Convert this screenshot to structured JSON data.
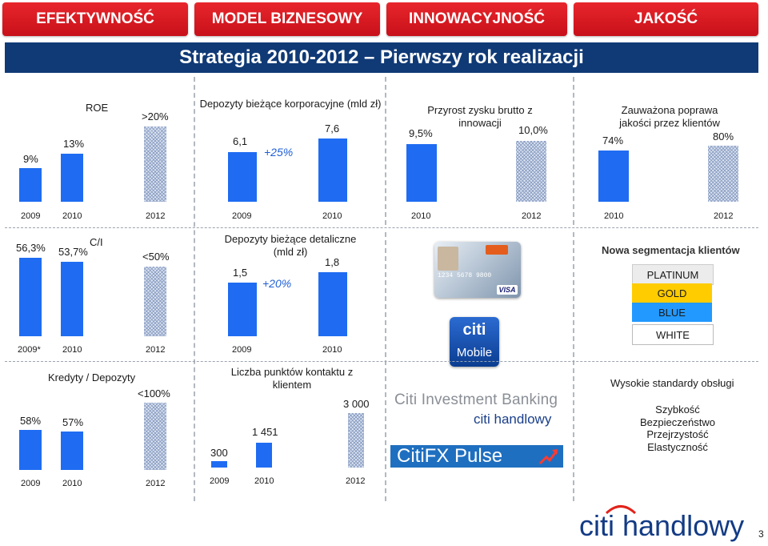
{
  "tabs": [
    "EFEKTYWNOŚĆ",
    "MODEL BIZNESOWY",
    "INNOWACYJNOŚĆ",
    "JAKOŚĆ"
  ],
  "banner": "Strategia 2010-2012 – Pierwszy rok realizacji",
  "charts": {
    "roe": {
      "title": "ROE",
      "values": [
        "9%",
        "13%",
        ">20%"
      ],
      "years": [
        "2009",
        "2010",
        "2012"
      ]
    },
    "corp_deposits": {
      "title": "Depozyty bieżące korporacyjne (mld zł)",
      "values": [
        "6,1",
        "7,6"
      ],
      "growth": "+25%",
      "years": [
        "2009",
        "2010"
      ]
    },
    "innovation_profit": {
      "title": "Przyrost zysku brutto z innowacji",
      "values": [
        "9,5%",
        "10,0%"
      ],
      "years": [
        "2010",
        "2012"
      ]
    },
    "quality": {
      "title": "Zauważona poprawa jakości przez klientów",
      "values": [
        "74%",
        "80%"
      ],
      "years": [
        "2010",
        "2012"
      ]
    },
    "ci": {
      "title": "C/I",
      "values": [
        "56,3%",
        "53,7%",
        "<50%"
      ],
      "years": [
        "2009*",
        "2010",
        "2012"
      ]
    },
    "retail_deposits": {
      "title": "Depozyty bieżące detaliczne (mld zł)",
      "values": [
        "1,5",
        "1,8"
      ],
      "growth": "+20%",
      "years": [
        "2009",
        "2010"
      ]
    },
    "loans_deposits": {
      "title": "Kredyty / Depozyty",
      "values": [
        "58%",
        "57%",
        "<100%"
      ],
      "years": [
        "2009",
        "2010",
        "2012"
      ]
    },
    "contact_points": {
      "title": "Liczba punktów kontaktu z klientem",
      "values": [
        "300",
        "1 451",
        "3 000"
      ],
      "years": [
        "2009",
        "2010",
        "2012"
      ]
    }
  },
  "segmentation": {
    "title": "Nowa segmentacja klientów",
    "levels": [
      "PLATINUM",
      "GOLD",
      "BLUE",
      "WHITE"
    ]
  },
  "service": {
    "title": "Wysokie standardy obsługi",
    "items": [
      "Szybkość",
      "Bezpieczeństwo",
      "Przejrzystość",
      "Elastyczność"
    ]
  },
  "card": {
    "brand": "VISA",
    "number": "1234 5678 9800"
  },
  "logos": {
    "mobile_top": "citi",
    "mobile_bottom": "Mobile",
    "cib": "Citi Investment Banking",
    "handlowy_small": "citi handlowy",
    "fx": "CitiFX Pulse",
    "footer": "citi handlowy"
  },
  "page_number": "3",
  "colors": {
    "tab_red": "#d9141f",
    "banner_navy": "#103a76",
    "bar_blue": "#1f6cf2",
    "gold": "#ffcc00",
    "blue_segment": "#2299ff"
  }
}
